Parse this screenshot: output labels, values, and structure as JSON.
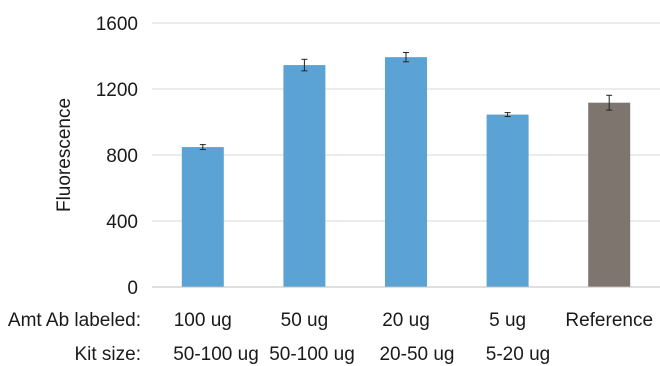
{
  "chart_data": {
    "type": "bar",
    "title": "",
    "xlabel": "",
    "ylabel": "Fluorescence",
    "ylim": [
      0,
      1600
    ],
    "yticks": [
      0,
      400,
      800,
      1200,
      1600
    ],
    "grid": true,
    "categories": [
      "100 ug",
      "50 ug",
      "20 ug",
      "5 ug",
      "Reference"
    ],
    "kit_sizes": [
      "50-100 ug",
      "50-100 ug",
      "20-50 ug",
      "5-20 ug"
    ],
    "values": [
      848,
      1345,
      1393,
      1045,
      1117
    ],
    "errors": [
      15,
      35,
      28,
      12,
      45
    ],
    "colors": [
      "#5BA3D4",
      "#5BA3D4",
      "#5BA3D4",
      "#5BA3D4",
      "#7E756F"
    ]
  },
  "labels": {
    "row1": "Amt Ab labeled:",
    "row2": "Kit size:"
  }
}
